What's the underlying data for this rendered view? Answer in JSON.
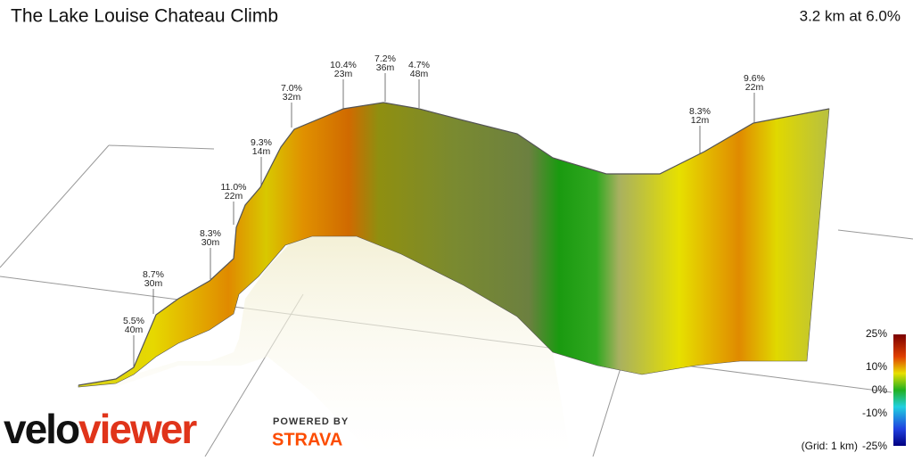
{
  "header": {
    "title": "The Lake Louise Chateau Climb",
    "summary": "3.2 km at 6.0%"
  },
  "annotations": [
    {
      "grade": "5.5%",
      "length": "40m"
    },
    {
      "grade": "8.7%",
      "length": "30m"
    },
    {
      "grade": "8.3%",
      "length": "30m"
    },
    {
      "grade": "11.0%",
      "length": "22m"
    },
    {
      "grade": "9.3%",
      "length": "14m"
    },
    {
      "grade": "7.0%",
      "length": "32m"
    },
    {
      "grade": "10.4%",
      "length": "23m"
    },
    {
      "grade": "7.2%",
      "length": "36m"
    },
    {
      "grade": "4.7%",
      "length": "48m"
    },
    {
      "grade": "8.3%",
      "length": "12m"
    },
    {
      "grade": "9.6%",
      "length": "22m"
    }
  ],
  "legend": {
    "labels": [
      "25%",
      "10%",
      "0%",
      "-10%",
      "-25%"
    ],
    "grid_note": "(Grid: 1 km)"
  },
  "branding": {
    "logo_part1": "velo",
    "logo_part2": "viewer",
    "powered_by": "POWERED BY",
    "strava": "STRAVA"
  }
}
